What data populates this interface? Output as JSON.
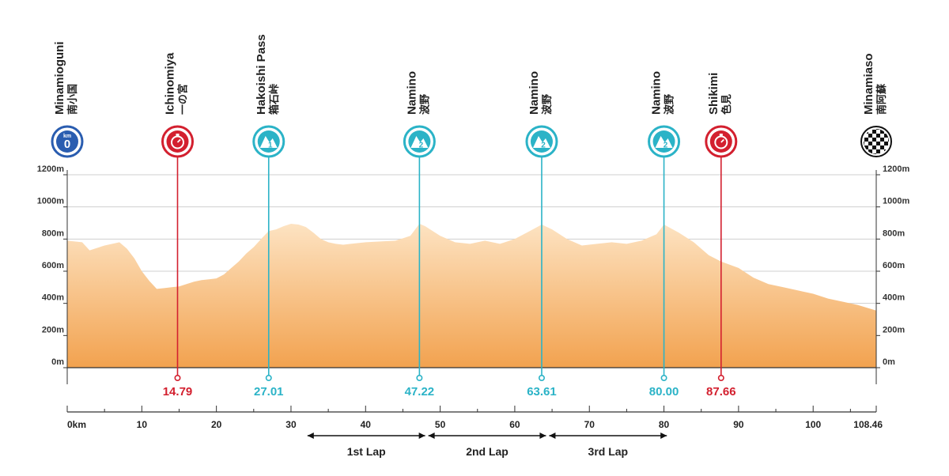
{
  "chart_data": {
    "type": "area",
    "title": "",
    "xlabel": "",
    "ylabel": "",
    "x_unit": "km",
    "y_unit": "m",
    "xlim": [
      0,
      108.46
    ],
    "ylim": [
      0,
      1200
    ],
    "x_ticks": [
      0,
      10,
      20,
      30,
      40,
      50,
      60,
      70,
      80,
      90,
      100,
      108.46
    ],
    "x_tick_labels": [
      "0km",
      "10",
      "20",
      "30",
      "40",
      "50",
      "60",
      "70",
      "80",
      "90",
      "100",
      "108.46"
    ],
    "y_ticks": [
      0,
      200,
      400,
      600,
      800,
      1000,
      1200
    ],
    "y_tick_labels_left": [
      "0m",
      "200m",
      "400m",
      "600m",
      "800m",
      "1000m",
      "1200m"
    ],
    "y_tick_labels_right": [
      "0m",
      "200m",
      "400m",
      "600m",
      "800m",
      "1000m",
      "1200m"
    ],
    "grid": true,
    "colors": {
      "area_top": "#fde3c2",
      "area_bottom": "#f2a24f",
      "grid": "#cfcfcf",
      "axis": "#333333",
      "sprint": "#d3202f",
      "kom": "#2bb3c7",
      "start": "#2a5db0",
      "finish": "#111111"
    },
    "profile": {
      "x": [
        0,
        2,
        3,
        5,
        7,
        8,
        9,
        10,
        11,
        12,
        13,
        14,
        15,
        16,
        17,
        18,
        19,
        20,
        21,
        22,
        23,
        24,
        25,
        26,
        27,
        28,
        29,
        30,
        31,
        32,
        33,
        34,
        35,
        36,
        37,
        38,
        40,
        42,
        44,
        46,
        47.22,
        48,
        50,
        52,
        54,
        56,
        58,
        60,
        62,
        63.61,
        65,
        67,
        69,
        71,
        73,
        75,
        77,
        79,
        80,
        82,
        84,
        86,
        87.66,
        90,
        92,
        94,
        96,
        98,
        100,
        102,
        104,
        106,
        108.46
      ],
      "y": [
        790,
        780,
        730,
        760,
        780,
        740,
        680,
        600,
        540,
        490,
        495,
        500,
        505,
        520,
        535,
        545,
        550,
        555,
        580,
        620,
        660,
        710,
        750,
        800,
        850,
        860,
        880,
        895,
        890,
        875,
        840,
        800,
        780,
        770,
        765,
        770,
        780,
        785,
        790,
        820,
        895,
        880,
        820,
        780,
        770,
        790,
        770,
        800,
        850,
        890,
        860,
        800,
        760,
        770,
        780,
        770,
        790,
        830,
        890,
        840,
        780,
        700,
        660,
        620,
        560,
        520,
        500,
        480,
        460,
        430,
        410,
        390,
        355
      ]
    },
    "checkpoints": [
      {
        "km": 0,
        "km_label": "",
        "type": "start",
        "name": "Minamioguni",
        "name_jp": "南小国",
        "icon": "start-km-icon",
        "badge": "0",
        "badge_top": "km"
      },
      {
        "km": 14.79,
        "km_label": "14.79",
        "type": "sprint",
        "name": "Ichinomiya",
        "name_jp": "一の宮",
        "icon": "stopwatch-icon",
        "badge": "",
        "badge_top": ""
      },
      {
        "km": 27.01,
        "km_label": "27.01",
        "type": "kom",
        "name": "Hakoishi Pass",
        "name_jp": "箱石峠",
        "icon": "mountain-icon",
        "badge": "1",
        "badge_top": ""
      },
      {
        "km": 47.22,
        "km_label": "47.22",
        "type": "kom",
        "name": "Namino",
        "name_jp": "波野",
        "icon": "mountain-icon",
        "badge": "2",
        "badge_top": ""
      },
      {
        "km": 63.61,
        "km_label": "63.61",
        "type": "kom",
        "name": "Namino",
        "name_jp": "波野",
        "icon": "mountain-icon",
        "badge": "2",
        "badge_top": ""
      },
      {
        "km": 80.0,
        "km_label": "80.00",
        "type": "kom",
        "name": "Namino",
        "name_jp": "波野",
        "icon": "mountain-icon",
        "badge": "2",
        "badge_top": ""
      },
      {
        "km": 87.66,
        "km_label": "87.66",
        "type": "sprint",
        "name": "Shikimi",
        "name_jp": "色見",
        "icon": "stopwatch-icon",
        "badge": "",
        "badge_top": ""
      },
      {
        "km": 108.46,
        "km_label": "",
        "type": "finish",
        "name": "Minamiaso",
        "name_jp": "南阿蘇",
        "icon": "checkered-flag-icon",
        "badge": "",
        "badge_top": ""
      }
    ],
    "laps": [
      {
        "label": "1st Lap",
        "from": 32.0,
        "to": 48.2
      },
      {
        "label": "2nd Lap",
        "from": 48.2,
        "to": 64.4
      },
      {
        "label": "3rd Lap",
        "from": 64.4,
        "to": 80.6
      }
    ]
  }
}
